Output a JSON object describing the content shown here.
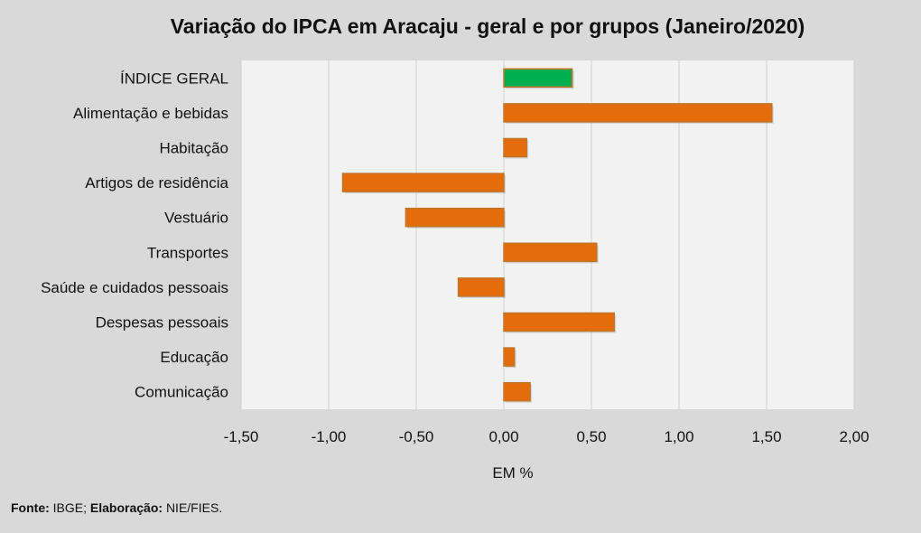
{
  "chart_data": {
    "type": "bar",
    "orientation": "horizontal",
    "title": "Variação do IPCA em Aracaju - geral e por grupos (Janeiro/2020)",
    "xlabel": "EM %",
    "ylabel": "",
    "xlim": [
      -1.5,
      2.0
    ],
    "xticks": [
      -1.5,
      -1.0,
      -0.5,
      0.0,
      0.5,
      1.0,
      1.5,
      2.0
    ],
    "xtick_labels": [
      "-1,50",
      "-1,00",
      "-0,50",
      "0,00",
      "0,50",
      "1,00",
      "1,50",
      "2,00"
    ],
    "grid": true,
    "categories": [
      "ÍNDICE GERAL",
      "Alimentação e bebidas",
      "Habitação",
      "Artigos de residência",
      "Vestuário",
      "Transportes",
      "Saúde e cuidados pessoais",
      "Despesas pessoais",
      "Educação",
      "Comunicação"
    ],
    "values": [
      0.39,
      1.53,
      0.13,
      -0.92,
      -0.56,
      0.53,
      -0.26,
      0.63,
      0.06,
      0.15
    ],
    "colors": [
      "#00b050",
      "#e46c0a",
      "#e46c0a",
      "#e46c0a",
      "#e46c0a",
      "#e46c0a",
      "#e46c0a",
      "#e46c0a",
      "#e46c0a",
      "#e46c0a"
    ],
    "bar_border_color": "#c0762a",
    "plot_background": "#f2f2f2",
    "background": "#d9d9d9"
  },
  "source": {
    "fonte_label": "Fonte:",
    "fonte_value": "IBGE;",
    "elaboracao_label": "Elaboração:",
    "elaboracao_value": "NIE/FIES."
  }
}
